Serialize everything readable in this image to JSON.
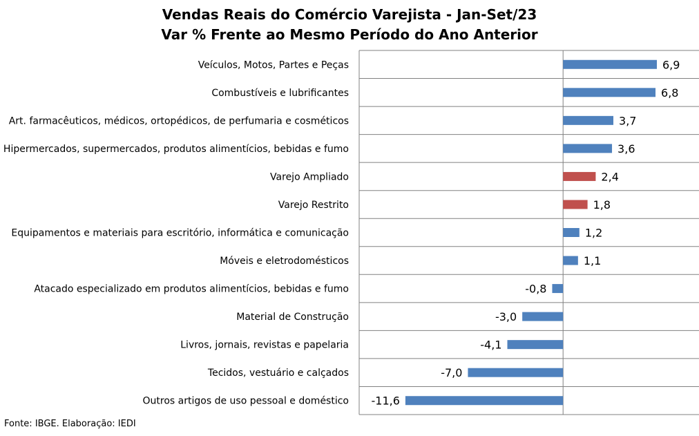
{
  "chart_data": {
    "type": "bar",
    "orientation": "horizontal",
    "title": "Vendas Reais do Comércio Varejista - Jan-Set/23",
    "subtitle": "Var % Frente ao Mesmo Período do Ano Anterior",
    "categories": [
      "Veículos, Motos, Partes e Peças",
      "Combustíveis e lubrificantes",
      "Art. farmacêuticos, médicos, ortopédicos, de perfumaria e cosméticos",
      "Hipermercados, supermercados, produtos alimentícios, bebidas e fumo",
      "Varejo Ampliado",
      "Varejo Restrito",
      "Equipamentos e materiais para escritório, informática e comunicação",
      "Móveis e eletrodomésticos",
      "Atacado especializado em produtos alimentícios, bebidas e fumo",
      "Material de Construção",
      "Livros, jornais, revistas e papelaria",
      "Tecidos, vestuário e calçados",
      "Outros artigos de uso pessoal e doméstico"
    ],
    "values": [
      6.9,
      6.8,
      3.7,
      3.6,
      2.4,
      1.8,
      1.2,
      1.1,
      -0.8,
      -3.0,
      -4.1,
      -7.0,
      -11.6
    ],
    "value_labels": [
      "6,9",
      "6,8",
      "3,7",
      "3,6",
      "2,4",
      "1,8",
      "1,2",
      "1,1",
      "-0,8",
      "-3,0",
      "-4,1",
      "-7,0",
      "-11,6"
    ],
    "highlight": [
      false,
      false,
      false,
      false,
      true,
      true,
      false,
      false,
      false,
      false,
      false,
      false,
      false
    ],
    "colors": {
      "default": "#4F81BD",
      "highlight": "#C0504D",
      "grid": "#808080"
    },
    "xlim": [
      -15,
      10
    ],
    "grid": true,
    "legend": "none"
  },
  "footer": "Fonte: IBGE. Elaboração: IEDI"
}
